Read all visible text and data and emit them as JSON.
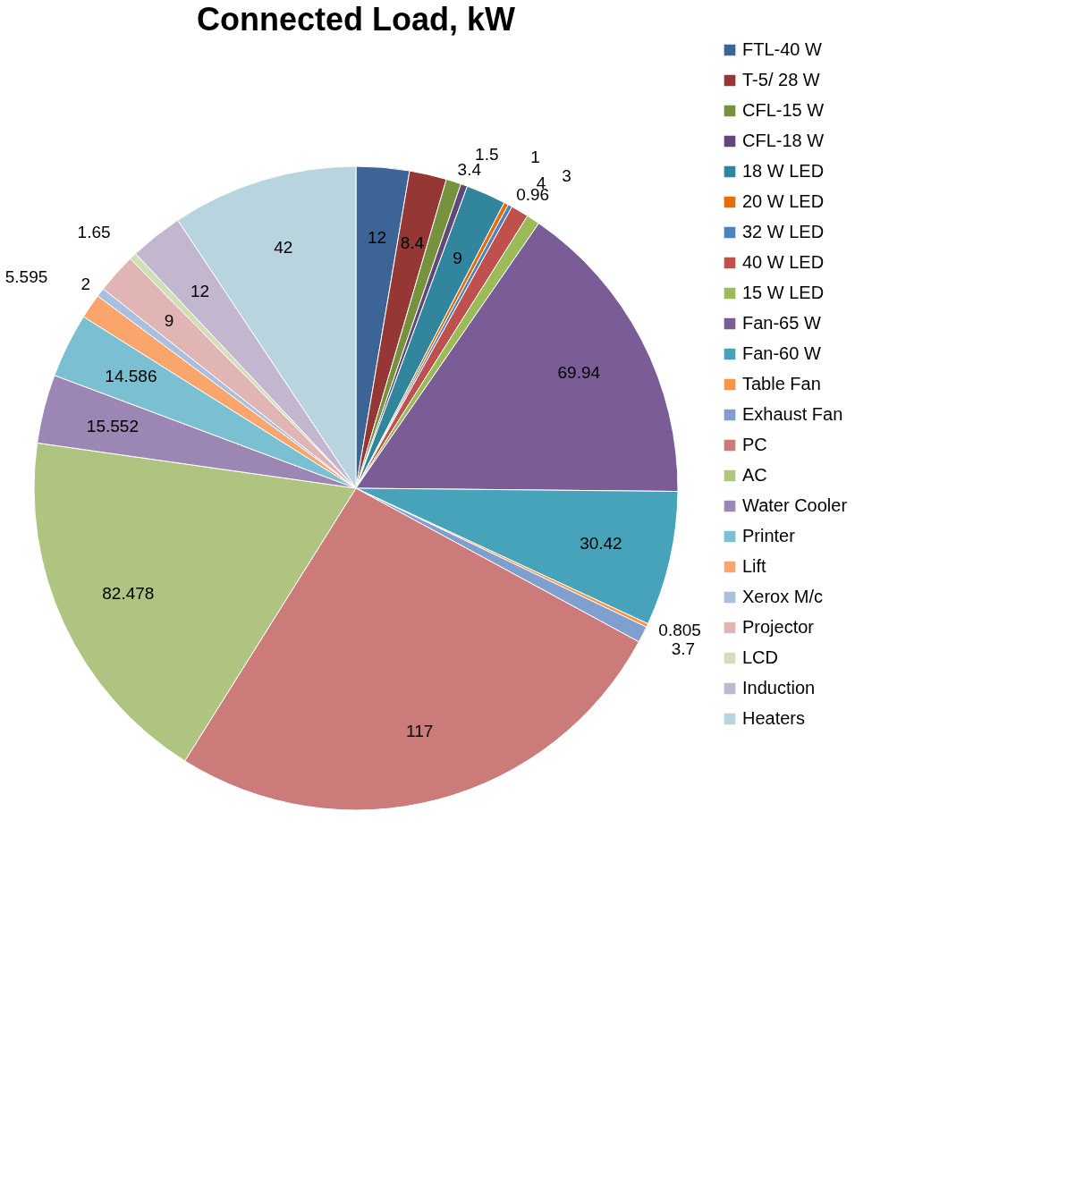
{
  "chart_data": {
    "type": "pie",
    "title": "Connected Load, kW",
    "categories": [
      "FTL-40 W",
      "T-5/ 28 W",
      "CFL-15 W",
      "CFL-18 W",
      "18 W LED",
      "20 W LED",
      "32 W LED",
      "40 W LED",
      "15 W LED",
      "Fan-65 W",
      "Fan-60 W",
      "Table Fan",
      "Exhaust Fan",
      "PC",
      "AC",
      "Water Cooler",
      "Printer",
      "Lift",
      "Xerox M/c",
      "Projector",
      "LCD",
      "Induction",
      "Heaters"
    ],
    "values": [
      12,
      8.4,
      3.4,
      1.5,
      9,
      1,
      0.96,
      4,
      3,
      69.94,
      30.42,
      0.805,
      3.7,
      117,
      82.478,
      15.552,
      14.586,
      5.595,
      2,
      9,
      1.65,
      12,
      42
    ],
    "colors": [
      "#3c6496",
      "#953735",
      "#76923c",
      "#5f497a",
      "#31859c",
      "#e46c0a",
      "#4f81bd",
      "#c0504d",
      "#9bbb59",
      "#7a5c96",
      "#47a3b9",
      "#f79646",
      "#7f9fcf",
      "#cb7c7a",
      "#aec480",
      "#9c86b4",
      "#7abfd2",
      "#f9a56c",
      "#a9bfe0",
      "#e1b5b4",
      "#d1deb8",
      "#c3b7d0",
      "#b8d5df"
    ],
    "data_labels": true,
    "legend": "right"
  }
}
